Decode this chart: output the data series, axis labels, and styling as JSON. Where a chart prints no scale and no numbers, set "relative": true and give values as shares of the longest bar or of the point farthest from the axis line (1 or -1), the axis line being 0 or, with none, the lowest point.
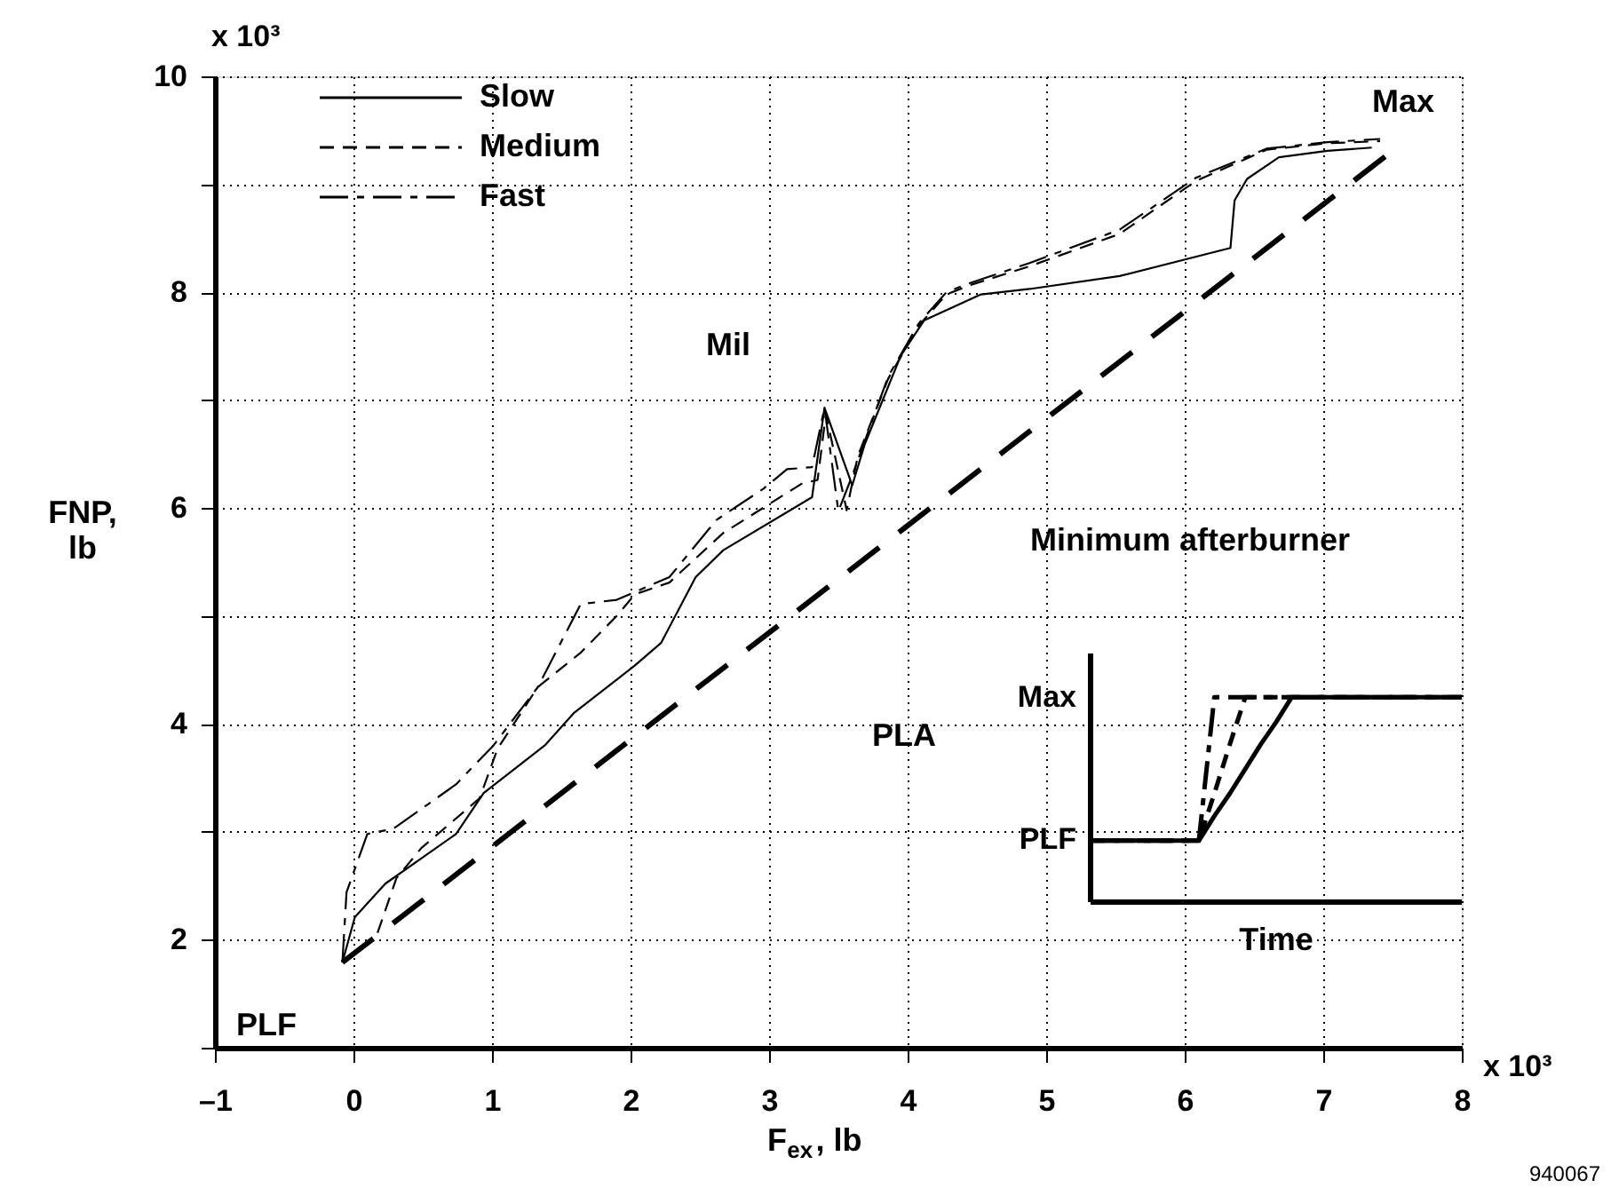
{
  "chart_data": [
    {
      "type": "line",
      "xlabel": "F$_{ex}$, lb",
      "ylabel": "FNP,\nlb",
      "xlim": [
        -1,
        8
      ],
      "ylim": [
        1,
        10
      ],
      "xticks": [
        {
          "value": -1,
          "label": "–1"
        },
        0,
        1,
        2,
        3,
        4,
        5,
        6,
        7,
        8
      ],
      "yticks": [
        {
          "value": 1,
          "label": null
        },
        2,
        {
          "value": 3,
          "label": null
        },
        4,
        {
          "value": 5,
          "label": null
        },
        6,
        {
          "value": 7,
          "label": null
        },
        8,
        {
          "value": 9,
          "label": null
        },
        10
      ],
      "grid": true,
      "legend": "top left",
      "series": [
        {
          "name": "Slow",
          "color": "#000000",
          "line_style": "solid",
          "x": [
            -0.08,
            0.01,
            0.23,
            0.74,
            0.94,
            1.38,
            1.59,
            2.03,
            2.22,
            2.47,
            2.67,
            3.31,
            3.4,
            3.6,
            3.69,
            3.95,
            4.12,
            4.53,
            4.88,
            5.53,
            6.33,
            6.36,
            6.45,
            6.68,
            7.03,
            7.35
          ],
          "values": [
            1.79,
            2.21,
            2.52,
            2.98,
            3.36,
            3.8,
            4.1,
            4.54,
            4.75,
            5.36,
            5.61,
            6.1,
            6.93,
            6.21,
            6.59,
            7.41,
            7.74,
            7.98,
            8.03,
            8.15,
            8.41,
            8.85,
            9.05,
            9.25,
            9.31,
            9.34
          ]
        },
        {
          "name": "Medium",
          "color": "#000000",
          "line_style": "dashed",
          "x": [
            -0.08,
            0.17,
            0.31,
            0.49,
            0.91,
            1.04,
            1.33,
            1.64,
            1.9,
            2.03,
            2.28,
            2.67,
            3.24,
            3.35,
            3.41,
            3.56,
            3.64,
            3.86,
            4.08,
            4.28,
            4.46,
            4.88,
            5.53,
            6.08,
            6.59,
            7.03,
            7.41
          ],
          "values": [
            1.79,
            2.05,
            2.57,
            2.85,
            3.31,
            3.77,
            4.34,
            4.66,
            5.0,
            5.2,
            5.31,
            5.77,
            6.23,
            6.26,
            6.87,
            5.98,
            6.48,
            7.2,
            7.69,
            7.98,
            8.07,
            8.24,
            8.54,
            9.03,
            9.32,
            9.38,
            9.4
          ]
        },
        {
          "name": "Fast",
          "color": "#000000",
          "line_style": "dashed",
          "x": [
            -0.08,
            -0.05,
            0.1,
            0.29,
            0.74,
            1.01,
            1.33,
            1.64,
            1.9,
            2.28,
            2.62,
            2.96,
            3.13,
            3.31,
            3.4,
            3.5,
            3.6,
            3.86,
            4.08,
            4.28,
            4.46,
            4.88,
            5.53,
            6.08,
            6.59,
            7.03,
            7.41
          ],
          "values": [
            1.79,
            2.44,
            2.98,
            3.03,
            3.44,
            3.8,
            4.34,
            5.11,
            5.15,
            5.36,
            5.89,
            6.18,
            6.36,
            6.38,
            6.93,
            5.97,
            6.3,
            7.22,
            7.71,
            8.0,
            8.09,
            8.27,
            8.58,
            9.06,
            9.33,
            9.39,
            9.42
          ]
        },
        {
          "color": "#000000",
          "line_style": "dashed",
          "x": [
            -0.08,
            7.49
          ],
          "values": [
            1.79,
            9.3
          ]
        }
      ],
      "annotations": [
        "Max",
        "PLF",
        "Mil",
        "Minimum afterburner",
        "x 10³",
        "x 10³",
        "940067"
      ]
    },
    {
      "type": "line",
      "relative": true,
      "xlabel": "Time",
      "ylabel": "PLA",
      "categories": [
        null,
        null,
        null,
        null,
        null,
        null,
        null,
        null,
        null,
        null,
        null,
        null,
        null,
        null,
        null,
        null,
        null,
        null,
        null,
        null,
        null,
        null,
        null,
        null,
        null
      ],
      "series": [
        {
          "color": "#000000",
          "line_style": "solid",
          "values": [
            0.3,
            0.3,
            0.3,
            0.3,
            0.3,
            0.3,
            0.3,
            0.3,
            0.42,
            0.53,
            0.65,
            0.77,
            0.88,
            1,
            1,
            1,
            1,
            1,
            1,
            1,
            1,
            1,
            1,
            1,
            1
          ]
        },
        {
          "color": "#000000",
          "line_style": "dashed",
          "values": [
            0.3,
            0.3,
            0.3,
            0.3,
            0.3,
            0.3,
            0.3,
            0.3,
            0.53,
            0.77,
            1,
            1,
            1,
            1,
            1,
            1,
            1,
            1,
            1,
            1,
            1,
            1,
            1,
            1,
            1
          ]
        },
        {
          "color": "#000000",
          "line_style": "dashed",
          "values": [
            0.3,
            0.3,
            0.3,
            0.3,
            0.3,
            0.3,
            0.3,
            0.3,
            1,
            1,
            1,
            1,
            1,
            1,
            1,
            1,
            1,
            1,
            1,
            1,
            1,
            1,
            1,
            1,
            1
          ]
        }
      ],
      "annotations": [
        "Max",
        "PLF"
      ]
    }
  ]
}
